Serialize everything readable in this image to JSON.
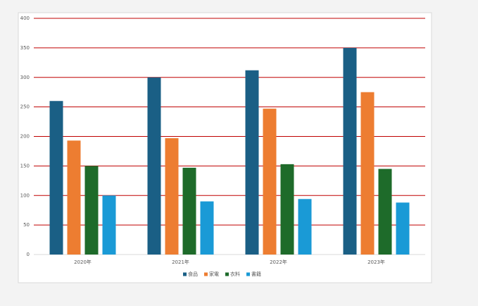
{
  "chart_data": {
    "type": "bar",
    "categories": [
      "2020年",
      "2021年",
      "2022年",
      "2023年"
    ],
    "series": [
      {
        "name": "食品",
        "color": "#1a5f85",
        "values": [
          260,
          300,
          312,
          350
        ]
      },
      {
        "name": "家電",
        "color": "#ed7d31",
        "values": [
          193,
          197,
          247,
          275
        ]
      },
      {
        "name": "衣料",
        "color": "#1e6b2a",
        "values": [
          150,
          147,
          153,
          145
        ]
      },
      {
        "name": "書籍",
        "color": "#1a9ad6",
        "values": [
          100,
          90,
          94,
          88
        ]
      }
    ],
    "ylim": [
      0,
      400
    ],
    "yticks": [
      0,
      50,
      100,
      150,
      200,
      250,
      300,
      350,
      400
    ],
    "grid": true,
    "grid_color": "#c00000",
    "legend": "bottom"
  }
}
